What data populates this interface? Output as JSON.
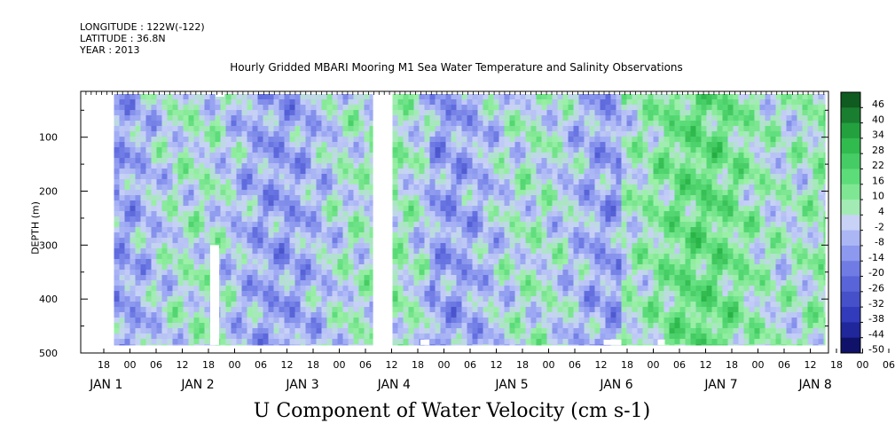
{
  "header": {
    "longitude": "LONGITUDE : 122W(-122)",
    "latitude": "LATITUDE : 36.8N",
    "year": "YEAR : 2013"
  },
  "chart_data": {
    "type": "heatmap",
    "title": "Hourly Gridded MBARI Mooring M1 Sea Water Temperature and Salinity Observations",
    "xlabel": "U Component of Water Velocity (cm s-1)",
    "ylabel": "DEPTH (m)",
    "y_ticks": [
      100,
      200,
      300,
      400,
      500
    ],
    "ylim": [
      500,
      15
    ],
    "data_depth_range": [
      20,
      485
    ],
    "x_hour_ticks": [
      "18",
      "00",
      "06",
      "12",
      "18",
      "00",
      "06",
      "12",
      "18",
      "00",
      "06",
      "12",
      "18",
      "00",
      "06",
      "12",
      "18",
      "00",
      "06",
      "12",
      "18",
      "00",
      "06",
      "12",
      "18",
      "00",
      "06",
      "12",
      "18",
      "00",
      "06",
      "12"
    ],
    "x_day_ticks": [
      "JAN  1",
      "JAN  2",
      "JAN  3",
      "JAN  4",
      "JAN  5",
      "JAN  6",
      "JAN  7",
      "JAN  8"
    ],
    "colorbar": {
      "labels": [
        "46",
        "40",
        "34",
        "28",
        "22",
        "16",
        "10",
        "4",
        "-2",
        "-8",
        "-14",
        "-20",
        "-26",
        "-32",
        "-38",
        "-44",
        "-50"
      ],
      "range": [
        -50,
        52
      ]
    },
    "colors": {
      "strong_positive": "#0a4a18",
      "positive": "#2ebd4a",
      "weak_positive": "#9cf0a8",
      "near_zero": "#c8d2f6",
      "weak_negative": "#a4b0f4",
      "negative": "#5e6ad8",
      "strong_negative": "#000050"
    },
    "data_gap": "between JAN 3 06 and JAN 3 12"
  }
}
